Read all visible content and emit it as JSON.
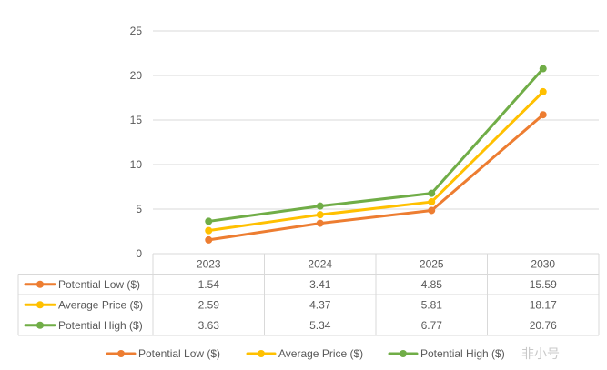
{
  "chart_data": {
    "type": "line",
    "categories": [
      "2023",
      "2024",
      "2025",
      "2030"
    ],
    "ylim": [
      0,
      25
    ],
    "yticks": [
      0,
      5,
      10,
      15,
      20,
      25
    ],
    "grid": true,
    "legend_position": "bottom",
    "series": [
      {
        "name": "Potential Low ($)",
        "color": "#ED7D31",
        "values": [
          1.54,
          3.41,
          4.85,
          15.59
        ],
        "labels": [
          "1.54",
          "3.41",
          "4.85",
          "15.59"
        ]
      },
      {
        "name": "Average Price ($)",
        "color": "#FFC000",
        "values": [
          2.59,
          4.37,
          5.81,
          18.17
        ],
        "labels": [
          "2.59",
          "4.37",
          "5.81",
          "18.17"
        ]
      },
      {
        "name": "Potential High ($)",
        "color": "#70AD47",
        "values": [
          3.63,
          5.34,
          6.77,
          20.76
        ],
        "labels": [
          "3.63",
          "5.34",
          "6.77",
          "20.76"
        ]
      }
    ]
  },
  "watermark": {
    "text": "非小号"
  }
}
